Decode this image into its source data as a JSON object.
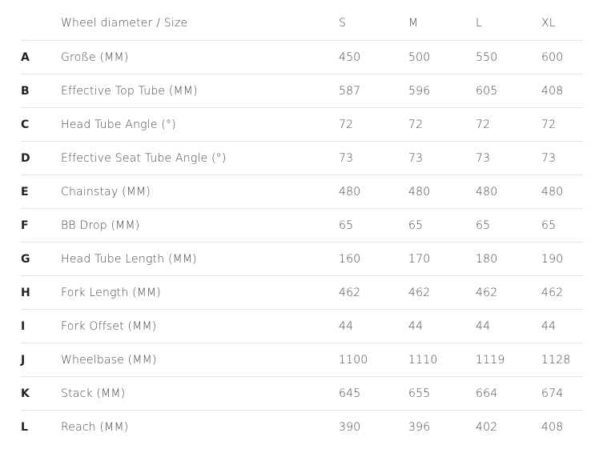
{
  "header": {
    "label": "Wheel diameter / Size",
    "sizes": [
      "S",
      "M",
      "L",
      "XL"
    ]
  },
  "rows": [
    {
      "letter": "A",
      "label": "Große (MM)",
      "values": [
        "450",
        "500",
        "550",
        "600"
      ]
    },
    {
      "letter": "B",
      "label": "Effective Top Tube (MM)",
      "values": [
        "587",
        "596",
        "605",
        "408"
      ]
    },
    {
      "letter": "C",
      "label": "Head Tube Angle (°)",
      "values": [
        "72",
        "72",
        "72",
        "72"
      ]
    },
    {
      "letter": "D",
      "label": "Effective Seat Tube Angle (°)",
      "values": [
        "73",
        "73",
        "73",
        "73"
      ]
    },
    {
      "letter": "E",
      "label": "Chainstay (MM)",
      "values": [
        "480",
        "480",
        "480",
        "480"
      ]
    },
    {
      "letter": "F",
      "label": "BB Drop (MM)",
      "values": [
        "65",
        "65",
        "65",
        "65"
      ]
    },
    {
      "letter": "G",
      "label": "Head Tube Length (MM)",
      "values": [
        "160",
        "170",
        "180",
        "190"
      ]
    },
    {
      "letter": "H",
      "label": "Fork Length (MM)",
      "values": [
        "462",
        "462",
        "462",
        "462"
      ]
    },
    {
      "letter": "I",
      "label": "Fork Offset (MM)",
      "values": [
        "44",
        "44",
        "44",
        "44"
      ]
    },
    {
      "letter": "J",
      "label": "Wheelbase (MM)",
      "values": [
        "1100",
        "1110",
        "1119",
        "1128"
      ]
    },
    {
      "letter": "K",
      "label": "Stack (MM)",
      "values": [
        "645",
        "655",
        "664",
        "674"
      ]
    },
    {
      "letter": "L",
      "label": "Reach (MM)",
      "values": [
        "390",
        "396",
        "402",
        "408"
      ]
    }
  ]
}
